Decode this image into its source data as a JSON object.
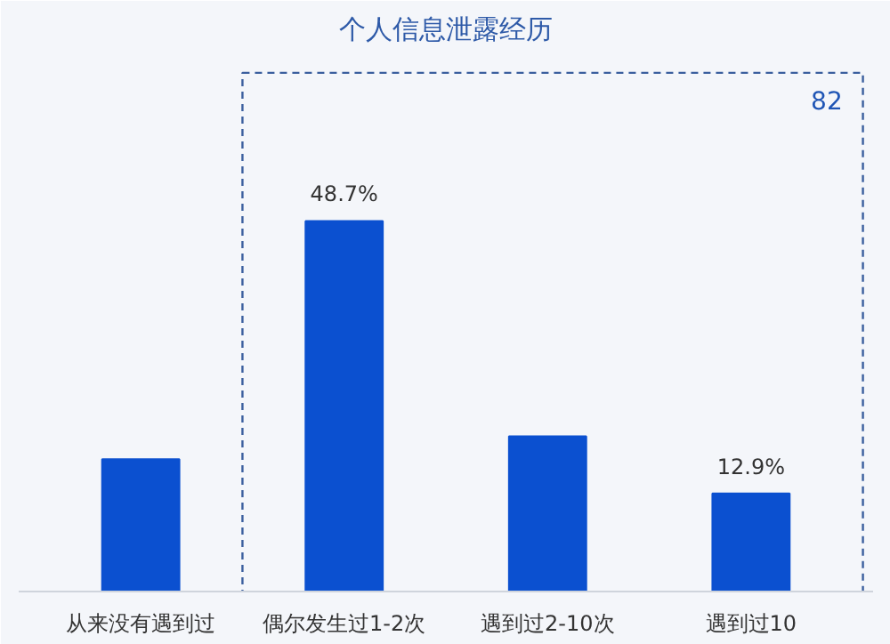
{
  "chart_data": {
    "type": "bar",
    "title": "个人信息泄露经历",
    "categories": [
      "从来没有遇到过",
      "偶尔发生过1-2次",
      "遇到过2-10次",
      "遇到过10"
    ],
    "values": [
      17.4,
      48.7,
      20.4,
      12.9
    ],
    "value_labels": [
      null,
      "48.7%",
      null,
      "12.9%"
    ],
    "color": "#0b50d0",
    "annotations": [
      "82"
    ],
    "grid": false
  }
}
